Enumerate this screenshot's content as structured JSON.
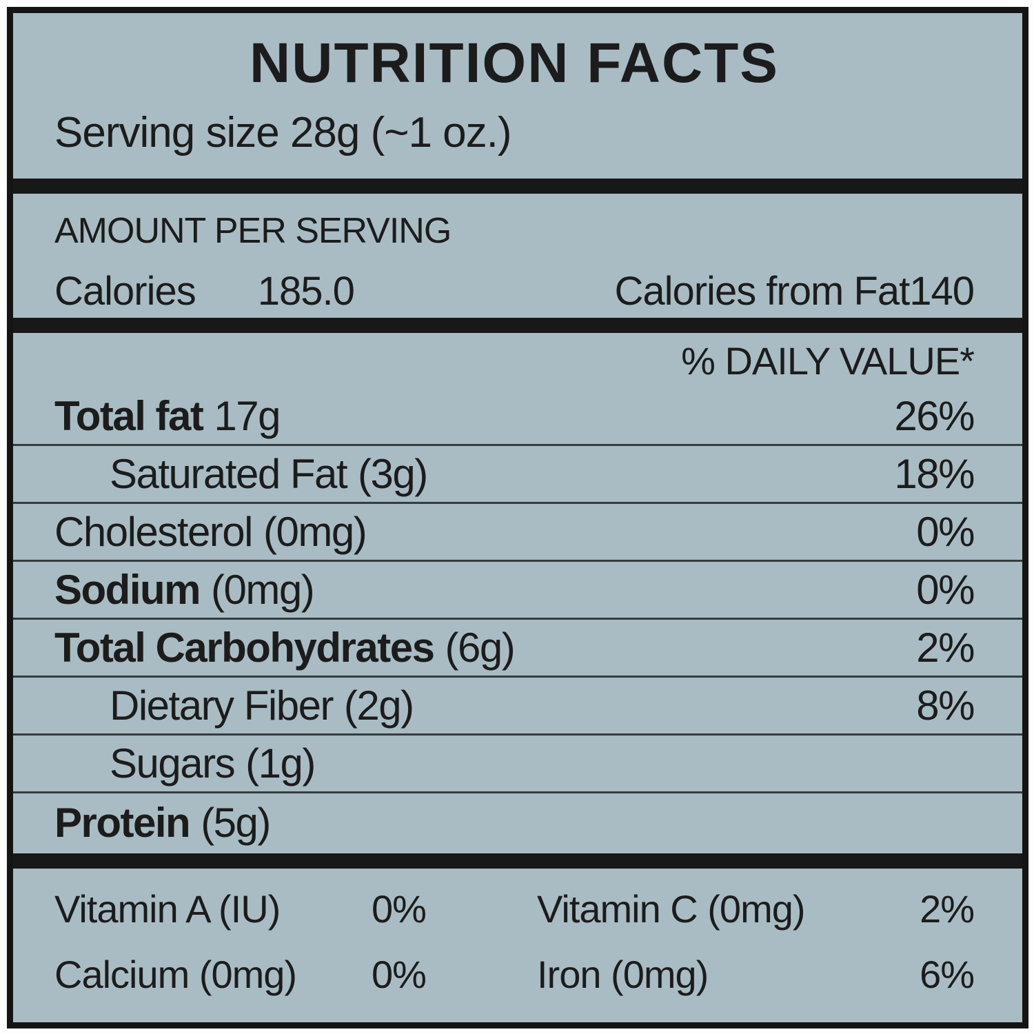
{
  "label": {
    "title": "NUTRITION FACTS",
    "serving_size": "Serving size 28g (~1 oz.)",
    "amount_per_serving": "AMOUNT PER SERVING",
    "calories_label": "Calories",
    "calories_value": "185.0",
    "calories_from_fat": "Calories from Fat140",
    "daily_value_header": "% DAILY VALUE*",
    "nutrients": [
      {
        "name": "Total fat",
        "amount": "17g",
        "dv": "26%"
      },
      {
        "name": "Saturated Fat",
        "amount": "(3g)",
        "dv": "18%"
      },
      {
        "name": "Cholesterol",
        "amount": "(0mg)",
        "dv": "0%"
      },
      {
        "name": "Sodium",
        "amount": "(0mg)",
        "dv": "0%"
      },
      {
        "name": "Total Carbohydrates",
        "amount": "(6g)",
        "dv": "2%"
      },
      {
        "name": "Dietary Fiber",
        "amount": "(2g)",
        "dv": "8%"
      },
      {
        "name": "Sugars",
        "amount": "(1g)",
        "dv": ""
      },
      {
        "name": "Protein",
        "amount": "(5g)",
        "dv": ""
      }
    ],
    "micronutrients": [
      {
        "name": "Vitamin A (IU)",
        "dv": "0%"
      },
      {
        "name": "Vitamin C (0mg)",
        "dv": "2%"
      },
      {
        "name": "Calcium (0mg)",
        "dv": "0%"
      },
      {
        "name": "Iron (0mg)",
        "dv": "6%"
      }
    ],
    "colors": {
      "background": "#a9bcc3",
      "border": "#141414",
      "text": "#1c1c1c",
      "outer_margin": "#fdfdfd"
    }
  }
}
